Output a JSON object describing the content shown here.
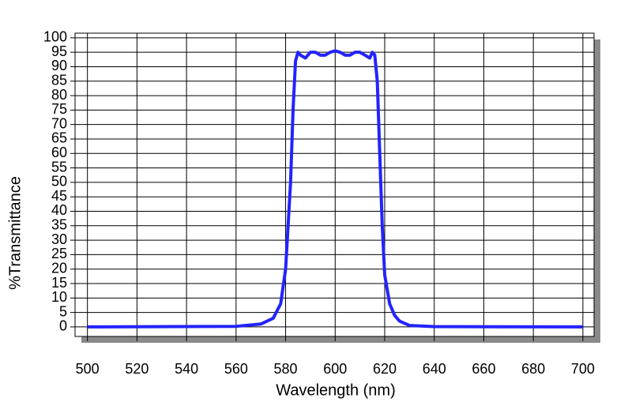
{
  "chart_data": {
    "type": "line",
    "xlabel": "Wavelength (nm)",
    "ylabel": "%Transmittance",
    "x": [
      500,
      560,
      570,
      575,
      578,
      580,
      582,
      583,
      584,
      585,
      586,
      588,
      590,
      592,
      594,
      596,
      598,
      600,
      602,
      604,
      606,
      608,
      610,
      612,
      614,
      615,
      616,
      617,
      618,
      619,
      620,
      622,
      624,
      626,
      630,
      640,
      700
    ],
    "series": [
      {
        "color": "#2323ff",
        "values": [
          0,
          0.2,
          1,
          3,
          8,
          20,
          50,
          75,
          92,
          95,
          94,
          93,
          95,
          95,
          94,
          94,
          95,
          95.5,
          95,
          94,
          94,
          95,
          95,
          94,
          93,
          95,
          94,
          85,
          60,
          35,
          18,
          8,
          4,
          2,
          0.5,
          0.1,
          0
        ]
      }
    ],
    "xlim": [
      495,
      704.5
    ],
    "xticks": [
      500,
      520,
      540,
      560,
      580,
      600,
      620,
      640,
      660,
      680,
      700
    ],
    "ylim": [
      -3.3,
      101.6
    ],
    "yticks": [
      0,
      5,
      10,
      15,
      20,
      25,
      30,
      35,
      40,
      45,
      50,
      55,
      60,
      65,
      70,
      75,
      80,
      85,
      90,
      95,
      100
    ],
    "grid": true
  }
}
